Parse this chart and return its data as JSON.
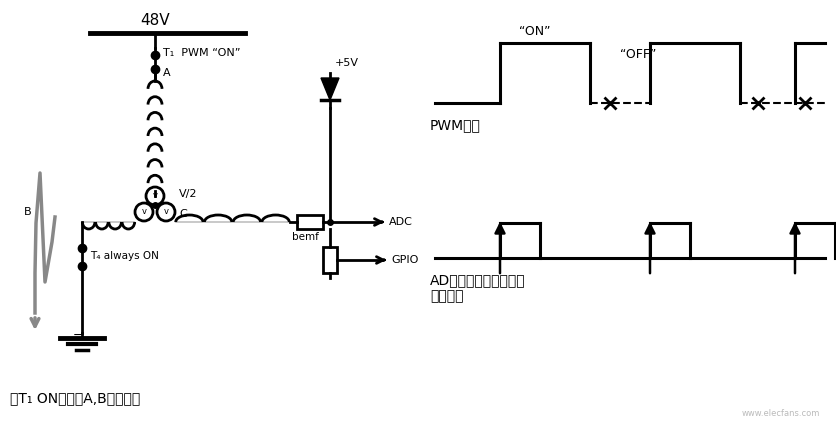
{
  "bg_color": "#ffffff",
  "fig_width": 8.37,
  "fig_height": 4.33,
  "dpi": 100,
  "left_panel": {
    "title_48v": "48V",
    "label_T1": "T₁  PWM “ON”",
    "label_A": "A",
    "label_B": "B",
    "label_V2": "V/2",
    "label_C": "C",
    "label_bemf": "bemf",
    "label_T4": "T₄ always ON",
    "label_5V": "+5V",
    "label_ADC": "ADC",
    "label_GPIO": "GPIO",
    "bottom_text": "在T₁ ON时流过A,B相的电流"
  },
  "right_panel": {
    "pwm_label": "PWM信号",
    "pwm_on_label": "“ON”",
    "pwm_off_label": "“OFF”",
    "ad_label": "AD转换在上升沿被触发\n触发信号"
  }
}
